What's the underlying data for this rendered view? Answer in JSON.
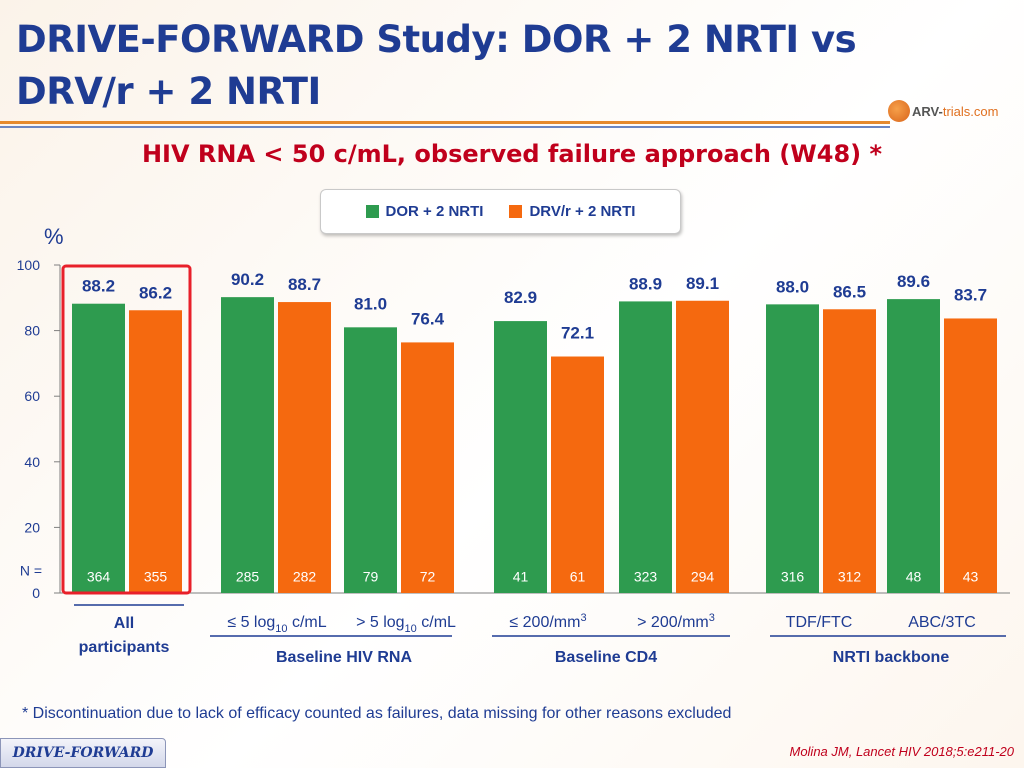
{
  "header": {
    "title": "DRIVE-FORWARD Study: DOR + 2 NRTI vs DRV/r + 2 NRTI",
    "logo_prefix": "ARV-",
    "logo_text": "trials.com"
  },
  "chart_data": {
    "type": "bar",
    "title": "HIV RNA < 50 c/mL, observed failure approach (W48) *",
    "ylabel": "%",
    "ylim": [
      0,
      100
    ],
    "yticks": [
      "100",
      "80",
      "60",
      "40",
      "20",
      "0"
    ],
    "n_label": "N =",
    "series": [
      {
        "name": "DOR + 2 NRTI",
        "color": "#2e9b4f"
      },
      {
        "name": "DRV/r + 2 NRTI",
        "color": "#f5690f"
      }
    ],
    "categories": [
      {
        "label": "All participants",
        "group": "",
        "values": [
          88.2,
          86.2
        ],
        "value_labels": [
          "88.2",
          "86.2"
        ],
        "n": [
          "364",
          "355"
        ]
      },
      {
        "label": "≤ 5 log10 c/mL",
        "group": "Baseline HIV RNA",
        "values": [
          90.2,
          88.7
        ],
        "value_labels": [
          "90.2",
          "88.7"
        ],
        "n": [
          "285",
          "282"
        ]
      },
      {
        "label": "> 5 log10 c/mL",
        "group": "Baseline HIV RNA",
        "values": [
          81.0,
          76.4
        ],
        "value_labels": [
          "81.0",
          "76.4"
        ],
        "n": [
          "79",
          "72"
        ]
      },
      {
        "label": "≤ 200/mm3",
        "group": "Baseline CD4",
        "values": [
          82.9,
          72.1
        ],
        "value_labels": [
          "82.9",
          "72.1"
        ],
        "n": [
          "41",
          "61"
        ]
      },
      {
        "label": "> 200/mm3",
        "group": "Baseline CD4",
        "values": [
          88.9,
          89.1
        ],
        "value_labels": [
          "88.9",
          "89.1"
        ],
        "n": [
          "323",
          "294"
        ]
      },
      {
        "label": "TDF/FTC",
        "group": "NRTI backbone",
        "values": [
          88.0,
          86.5
        ],
        "value_labels": [
          "88.0",
          "86.5"
        ],
        "n": [
          "316",
          "312"
        ]
      },
      {
        "label": "ABC/3TC",
        "group": "NRTI backbone",
        "values": [
          89.6,
          83.7
        ],
        "value_labels": [
          "89.6",
          "83.7"
        ],
        "n": [
          "48",
          "43"
        ]
      }
    ],
    "x_labels": {
      "all_line1": "All",
      "all_line2": "participants",
      "rna_low_a": "≤ 5 log",
      "rna_low_sub": "10",
      "rna_low_b": " c/mL",
      "rna_high_a": "> 5 log",
      "rna_high_sub": "10",
      "rna_high_b": " c/mL",
      "cd4_low_a": "≤ 200/mm",
      "cd4_low_sup": "3",
      "cd4_high_a": "> 200/mm",
      "cd4_high_sup": "3",
      "tdf": "TDF/FTC",
      "abc": "ABC/3TC"
    },
    "groups": [
      "Baseline HIV RNA",
      "Baseline CD4",
      "NRTI backbone"
    ],
    "highlight": "All participants"
  },
  "footnote": "* Discontinuation due to lack of efficacy counted as failures, data missing for other reasons excluded",
  "footer": {
    "tag": "DRIVE-FORWARD",
    "citation": "Molina JM, Lancet HIV 2018;5:e211-20"
  },
  "colors": {
    "dor": "#2e9b4f",
    "drv": "#f5690f",
    "title": "#1f3c93",
    "accent_red": "#c0001c"
  }
}
